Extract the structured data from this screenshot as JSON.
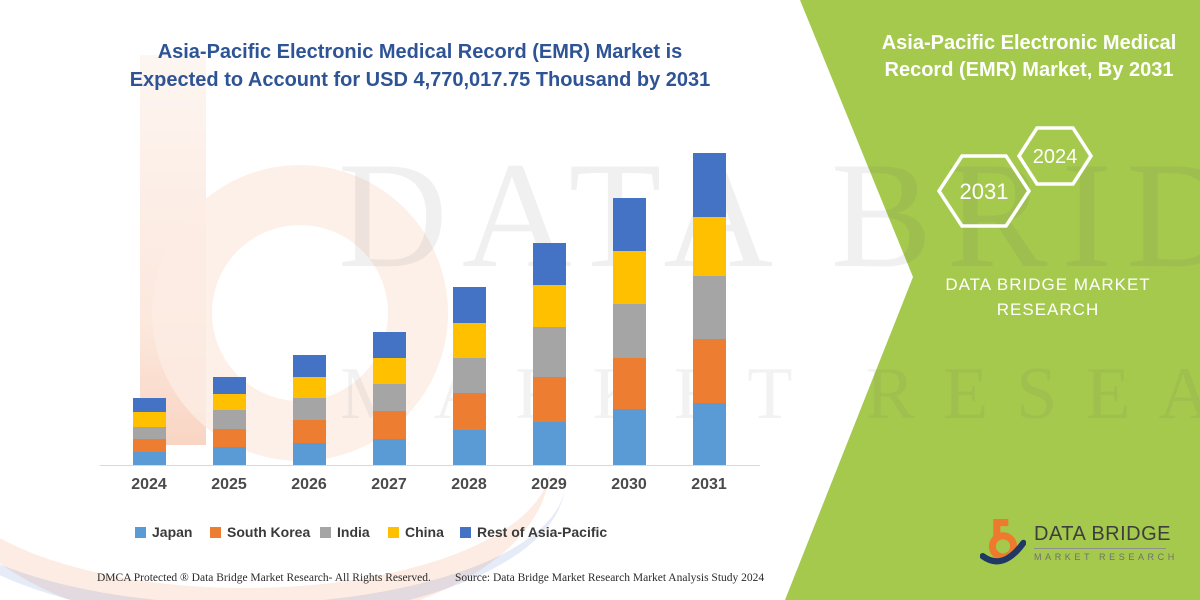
{
  "title": {
    "line1": "Asia-Pacific Electronic Medical Record (EMR) Market is",
    "line2": "Expected to Account for USD 4,770,017.75 Thousand by 2031"
  },
  "side_panel": {
    "bg_color": "#A4C94C",
    "heading_line1": "Asia-Pacific Electronic Medical",
    "heading_line2": "Record (EMR) Market, By 2031",
    "hexagon_left": "2031",
    "hexagon_right": "2024",
    "brand_line1": "DATA BRIDGE MARKET",
    "brand_line2": "RESEARCH"
  },
  "watermark": {
    "row1": "DATA BRIDGE",
    "row2": "MARKET RESEARCH"
  },
  "logo": {
    "name": "DATA BRIDGE",
    "subtitle": "MARKET RESEARCH"
  },
  "footer": {
    "left": "DMCA Protected ® Data Bridge Market Research-  All Rights Reserved.",
    "source": "Source: Data Bridge Market Research  Market Analysis Study 2024"
  },
  "chart_data": {
    "type": "bar",
    "stacked": true,
    "title": "Asia-Pacific Electronic Medical Record (EMR) Market is Expected to Account for USD 4,770,017.75 Thousand by 2031",
    "xlabel": "",
    "ylabel": "",
    "grid": false,
    "legend_position": "bottom",
    "axis_note": "no y-axis shown; values are pixel-estimated relative heights, total of 2031 stack corresponds to USD 4,770,017.75 Thousand",
    "total_2031_usd_thousand": 4770017.75,
    "categories": [
      "2024",
      "2025",
      "2026",
      "2027",
      "2028",
      "2029",
      "2030",
      "2031"
    ],
    "series": [
      {
        "name": "Japan",
        "color": "#5B9BD5",
        "values": [
          13,
          18,
          22,
          26,
          35,
          43,
          56,
          62
        ]
      },
      {
        "name": "South Korea",
        "color": "#ED7D31",
        "values": [
          13,
          18,
          23,
          28,
          37,
          45,
          51,
          64
        ]
      },
      {
        "name": "India",
        "color": "#A5A5A5",
        "values": [
          12,
          19,
          22,
          27,
          35,
          50,
          54,
          63
        ]
      },
      {
        "name": "China",
        "color": "#FFC000",
        "values": [
          15,
          16,
          21,
          26,
          35,
          42,
          53,
          59
        ]
      },
      {
        "name": "Rest of Asia-Pacific",
        "color": "#4472C4",
        "values": [
          14,
          17,
          22,
          26,
          36,
          42,
          53,
          64
        ]
      }
    ],
    "stack_totals": [
      67,
      88,
      110,
      133,
      178,
      222,
      267,
      312
    ]
  },
  "colors": {
    "title_blue": "#2E5496",
    "panel_green": "#A4C94C",
    "axis_line": "#D9D9D9",
    "logo_orange": "#EE7A2E",
    "logo_navy": "#203864"
  }
}
